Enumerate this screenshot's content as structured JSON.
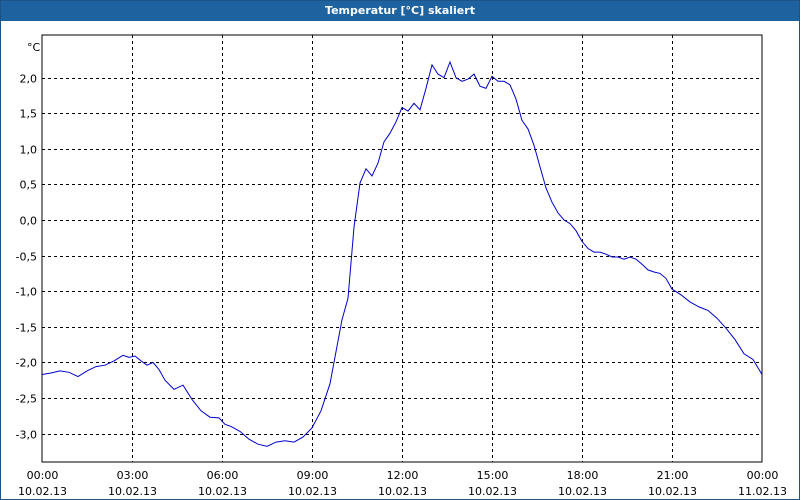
{
  "window": {
    "title": "Temperatur [°C] skaliert"
  },
  "chart_data": {
    "type": "line",
    "title": "Temperatur [°C] skaliert",
    "ylabel": "°C",
    "xlabel": "",
    "ylim": [
      -3.4,
      2.6
    ],
    "xlim_hours": [
      0,
      24
    ],
    "grid": true,
    "yticks": [
      {
        "value": 2.0,
        "label": "2,0"
      },
      {
        "value": 1.5,
        "label": "1,5"
      },
      {
        "value": 1.0,
        "label": "1,0"
      },
      {
        "value": 0.5,
        "label": "0,5"
      },
      {
        "value": 0.0,
        "label": "0,0"
      },
      {
        "value": -0.5,
        "label": "-0,5"
      },
      {
        "value": -1.0,
        "label": "-1,0"
      },
      {
        "value": -1.5,
        "label": "-1,5"
      },
      {
        "value": -2.0,
        "label": "-2,0"
      },
      {
        "value": -2.5,
        "label": "-2,5"
      },
      {
        "value": -3.0,
        "label": "-3,0"
      }
    ],
    "xticks": [
      {
        "hour": 0,
        "time": "00:00",
        "date": "10.02.13"
      },
      {
        "hour": 3,
        "time": "03:00",
        "date": "10.02.13"
      },
      {
        "hour": 6,
        "time": "06:00",
        "date": "10.02.13"
      },
      {
        "hour": 9,
        "time": "09:00",
        "date": "10.02.13"
      },
      {
        "hour": 12,
        "time": "12:00",
        "date": "10.02.13"
      },
      {
        "hour": 15,
        "time": "15:00",
        "date": "10.02.13"
      },
      {
        "hour": 18,
        "time": "18:00",
        "date": "10.02.13"
      },
      {
        "hour": 21,
        "time": "21:00",
        "date": "10.02.13"
      },
      {
        "hour": 24,
        "time": "00:00",
        "date": "11.02.13"
      }
    ],
    "series": [
      {
        "color": "#0000cc",
        "x": [
          0,
          0.3,
          0.6,
          0.9,
          1.2,
          1.5,
          1.8,
          2.1,
          2.4,
          2.7,
          2.9,
          3.1,
          3.3,
          3.5,
          3.7,
          3.9,
          4.1,
          4.4,
          4.7,
          5.0,
          5.3,
          5.6,
          5.9,
          6.1,
          6.3,
          6.6,
          6.9,
          7.2,
          7.5,
          7.8,
          8.1,
          8.4,
          8.7,
          9.0,
          9.3,
          9.6,
          9.8,
          10.0,
          10.2,
          10.4,
          10.6,
          10.8,
          11.0,
          11.2,
          11.4,
          11.6,
          11.8,
          12.0,
          12.2,
          12.4,
          12.6,
          12.8,
          13.0,
          13.2,
          13.4,
          13.6,
          13.8,
          14.0,
          14.2,
          14.4,
          14.6,
          14.8,
          15.0,
          15.2,
          15.4,
          15.6,
          15.8,
          16.0,
          16.2,
          16.4,
          16.6,
          16.8,
          17.0,
          17.2,
          17.4,
          17.6,
          17.8,
          18.0,
          18.2,
          18.4,
          18.6,
          18.8,
          19.0,
          19.2,
          19.4,
          19.6,
          19.8,
          20.0,
          20.2,
          20.4,
          20.6,
          20.8,
          21.0,
          21.3,
          21.6,
          21.9,
          22.2,
          22.5,
          22.8,
          23.1,
          23.4,
          23.7,
          24.0
        ],
        "y": [
          -2.17,
          -2.15,
          -2.12,
          -2.14,
          -2.2,
          -2.12,
          -2.06,
          -2.04,
          -1.98,
          -1.9,
          -1.93,
          -1.91,
          -1.98,
          -2.04,
          -2.0,
          -2.1,
          -2.25,
          -2.38,
          -2.32,
          -2.52,
          -2.68,
          -2.77,
          -2.78,
          -2.87,
          -2.9,
          -2.97,
          -3.08,
          -3.15,
          -3.18,
          -3.12,
          -3.1,
          -3.12,
          -3.05,
          -2.92,
          -2.68,
          -2.3,
          -1.85,
          -1.4,
          -1.1,
          -0.1,
          0.52,
          0.72,
          0.62,
          0.8,
          1.1,
          1.22,
          1.38,
          1.58,
          1.53,
          1.64,
          1.55,
          1.85,
          2.18,
          2.05,
          2.0,
          2.22,
          2.0,
          1.95,
          1.98,
          2.05,
          1.88,
          1.85,
          2.02,
          1.95,
          1.95,
          1.9,
          1.7,
          1.4,
          1.28,
          1.05,
          0.75,
          0.45,
          0.25,
          0.1,
          0.0,
          -0.05,
          -0.15,
          -0.3,
          -0.4,
          -0.45,
          -0.45,
          -0.48,
          -0.52,
          -0.52,
          -0.55,
          -0.52,
          -0.55,
          -0.62,
          -0.7,
          -0.73,
          -0.75,
          -0.82,
          -0.97,
          -1.05,
          -1.15,
          -1.22,
          -1.27,
          -1.38,
          -1.52,
          -1.68,
          -1.88,
          -1.96,
          -2.17
        ]
      }
    ]
  }
}
